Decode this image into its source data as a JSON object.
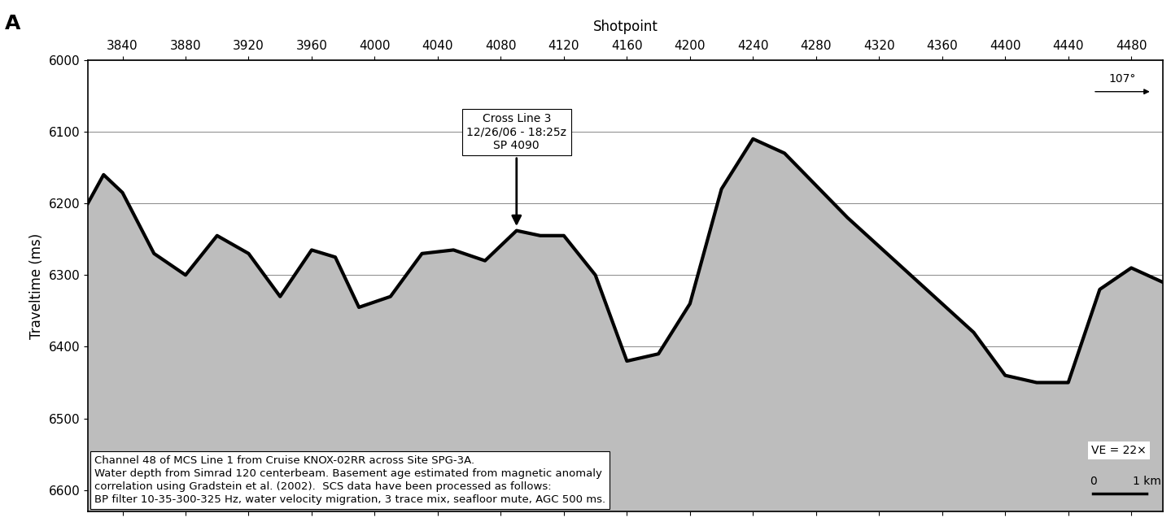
{
  "chart_data": {
    "type": "seismic_profile",
    "panel_label": "A",
    "x_label": "Shotpoint",
    "y_label": "Traveltime (ms)",
    "xlim": [
      3818,
      4500
    ],
    "xticks": [
      3840,
      3880,
      3920,
      3960,
      4000,
      4040,
      4080,
      4120,
      4160,
      4200,
      4240,
      4280,
      4320,
      4360,
      4400,
      4440,
      4480
    ],
    "ylim": [
      6630,
      6000
    ],
    "yticks": [
      6000,
      6100,
      6200,
      6300,
      6400,
      6500,
      6600
    ],
    "grid": true,
    "color": "#000000",
    "x": [
      3818,
      3828,
      3840,
      3860,
      3880,
      3900,
      3920,
      3940,
      3960,
      3975,
      3990,
      4010,
      4030,
      4050,
      4070,
      4090,
      4105,
      4120,
      4140,
      4160,
      4180,
      4200,
      4220,
      4240,
      4260,
      4280,
      4300,
      4320,
      4340,
      4360,
      4380,
      4400,
      4420,
      4440,
      4460,
      4480,
      4500
    ],
    "values": [
      6200,
      6160,
      6185,
      6270,
      6300,
      6245,
      6270,
      6330,
      6265,
      6275,
      6345,
      6330,
      6270,
      6265,
      6280,
      6238,
      6245,
      6245,
      6300,
      6420,
      6410,
      6340,
      6180,
      6110,
      6130,
      6175,
      6220,
      6260,
      6300,
      6340,
      6380,
      6440,
      6450,
      6450,
      6320,
      6290,
      6310
    ],
    "annotations": [
      {
        "text": "Cross Line 3\n12/26/06 - 18:25z\nSP 4090",
        "x": 4090,
        "y": 6235
      },
      {
        "text": "107°"
      },
      {
        "text": "VE = 22×"
      },
      {
        "text": "0"
      },
      {
        "text": "1 km"
      },
      {
        "text": "Channel 48 of MCS Line 1 from Cruise KNOX-02RR across Site SPG-3A.\nWater depth from Simrad 120 centerbeam. Basement age estimated from magnetic anomaly\ncorrelation using Gradstein et al. (2002).  SCS data have been processed as follows:\nBP filter 10-35-300-325 Hz, water velocity migration, 3 trace mix, seafloor mute, AGC 500 ms."
      }
    ]
  }
}
